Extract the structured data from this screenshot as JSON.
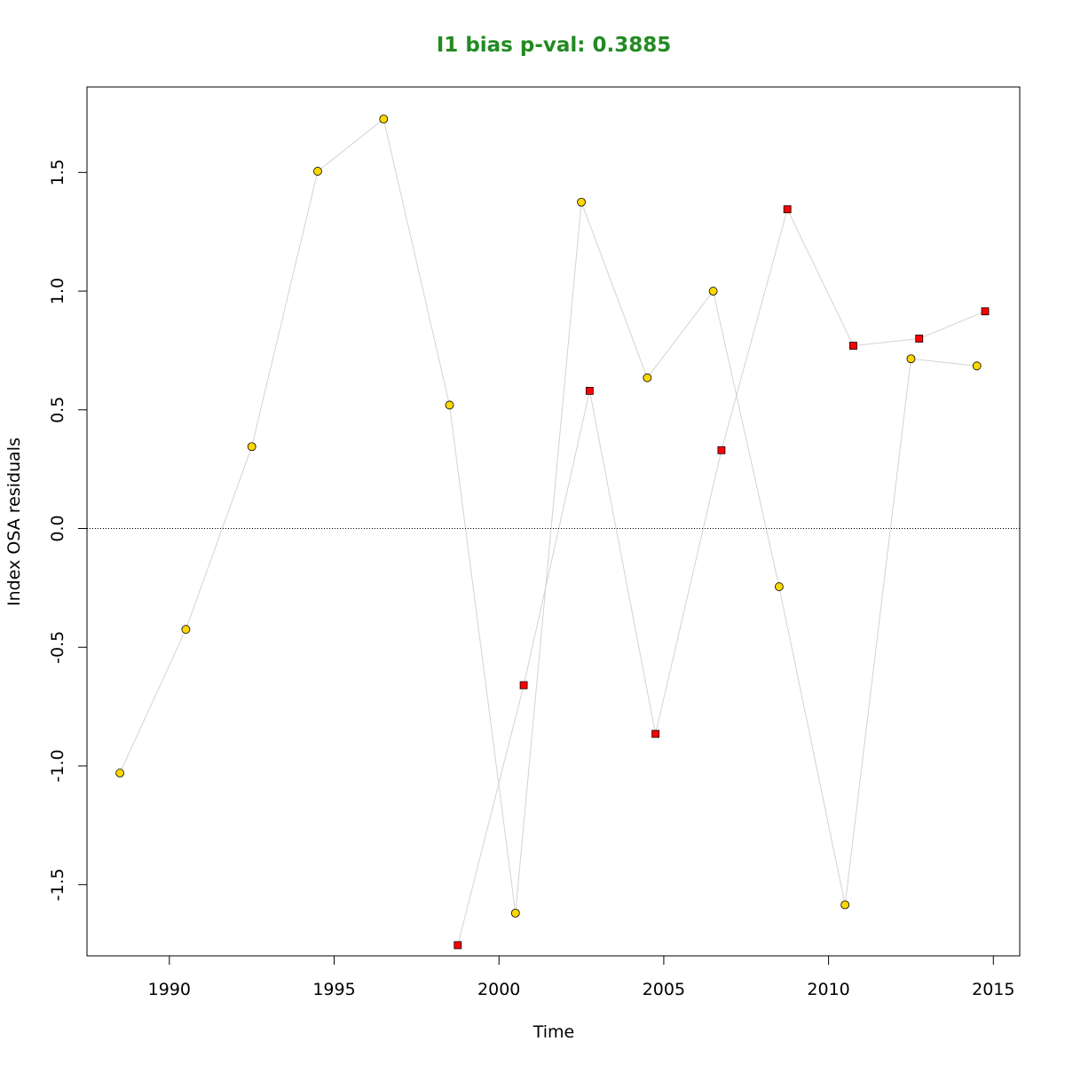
{
  "chart_data": {
    "type": "scatter",
    "title": "I1 bias p-val: 0.3885",
    "title_color": "#228B22",
    "xlabel": "Time",
    "ylabel": "Index OSA residuals",
    "xlim": [
      1987.5,
      2015.8
    ],
    "ylim": [
      -1.8,
      1.86
    ],
    "xticks": [
      1990,
      1995,
      2000,
      2005,
      2010,
      2015
    ],
    "yticks": [
      -1.5,
      -1.0,
      -0.5,
      0.0,
      0.5,
      1.0,
      1.5
    ],
    "ytick_labels": [
      "-1.5",
      "-1.0",
      "-0.5",
      "0.0",
      "0.5",
      "1.0",
      "1.5"
    ],
    "reference_line": {
      "y": 0.0,
      "style": "dotted"
    },
    "line_color": "#d3d3d3",
    "grid": false,
    "legend": "none",
    "series": [
      {
        "marker": "circle",
        "fill": "#FFD700",
        "points": [
          {
            "x": 1988.5,
            "y": -1.03
          },
          {
            "x": 1990.5,
            "y": -0.425
          },
          {
            "x": 1992.5,
            "y": 0.345
          },
          {
            "x": 1994.5,
            "y": 1.505
          },
          {
            "x": 1996.5,
            "y": 1.725
          },
          {
            "x": 1998.5,
            "y": 0.52
          },
          {
            "x": 2000.5,
            "y": -1.62
          },
          {
            "x": 2002.5,
            "y": 1.375
          },
          {
            "x": 2004.5,
            "y": 0.635
          },
          {
            "x": 2006.5,
            "y": 1.0
          },
          {
            "x": 2008.5,
            "y": -0.245
          },
          {
            "x": 2010.5,
            "y": -1.585
          },
          {
            "x": 2012.5,
            "y": 0.715
          },
          {
            "x": 2014.5,
            "y": 0.685
          }
        ]
      },
      {
        "marker": "square",
        "fill": "#FF0000",
        "points": [
          {
            "x": 1998.75,
            "y": -1.755
          },
          {
            "x": 2000.75,
            "y": -0.66
          },
          {
            "x": 2002.75,
            "y": 0.58
          },
          {
            "x": 2004.75,
            "y": -0.865
          },
          {
            "x": 2006.75,
            "y": 0.33
          },
          {
            "x": 2008.75,
            "y": 1.345
          },
          {
            "x": 2010.75,
            "y": 0.77
          },
          {
            "x": 2012.75,
            "y": 0.8
          },
          {
            "x": 2014.75,
            "y": 0.915
          }
        ]
      }
    ]
  }
}
